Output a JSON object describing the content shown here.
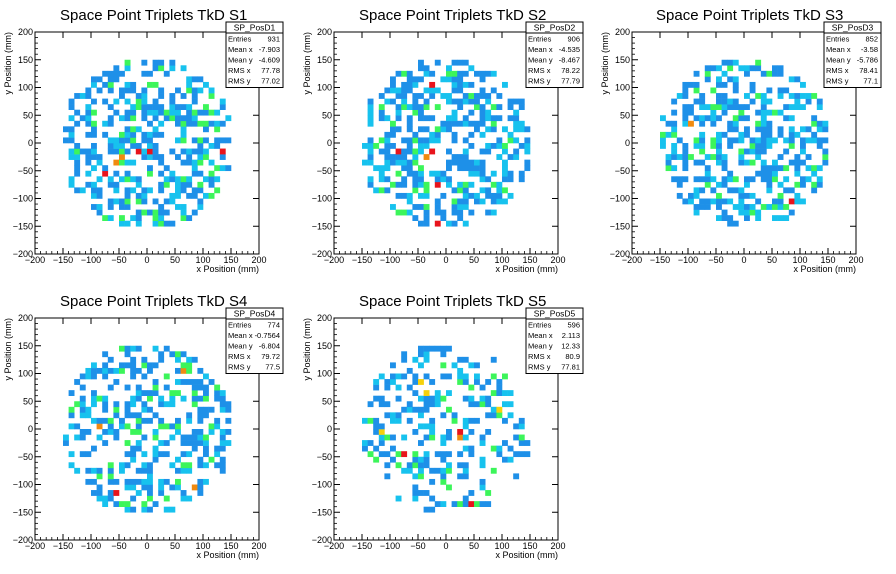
{
  "colors": {
    "low": "#1e90e8",
    "mid": "#17c2ee",
    "green": "#3cf55a",
    "yellow": "#f5d10c",
    "orange": "#f08a10",
    "red": "#e8141c"
  },
  "chart_data": [
    {
      "type": "heatmap",
      "title": "Space Point Triplets TkD S1",
      "xlabel": "x Position (mm)",
      "ylabel": "y Position (mm)",
      "xlim": [
        -200,
        200
      ],
      "ylim": [
        -200,
        200
      ],
      "xticks": [
        -200,
        -150,
        -100,
        -50,
        0,
        50,
        100,
        150,
        200
      ],
      "yticks": [
        -200,
        -150,
        -100,
        -50,
        0,
        50,
        100,
        150,
        200
      ],
      "grid": false,
      "bin_width_mm": 10,
      "radius_mm": 155,
      "stats": {
        "name": "SP_PosD1",
        "rows": [
          [
            "Entries",
            "931"
          ],
          [
            "Mean x",
            "-7.903"
          ],
          [
            "Mean y",
            "-4.609"
          ],
          [
            "RMS x",
            "77.78"
          ],
          [
            "RMS y",
            "77.02"
          ]
        ]
      },
      "hot_bins": [
        [
          -20,
          -15,
          "red"
        ],
        [
          0,
          -15,
          "red"
        ],
        [
          -80,
          -55,
          "red"
        ],
        [
          135,
          -15,
          "red"
        ],
        [
          -50,
          -30,
          "orange"
        ],
        [
          -60,
          -35,
          "orange"
        ]
      ]
    },
    {
      "type": "heatmap",
      "title": "Space Point Triplets TkD S2",
      "xlabel": "x Position (mm)",
      "ylabel": "y Position (mm)",
      "xlim": [
        -200,
        200
      ],
      "ylim": [
        -200,
        200
      ],
      "xticks": [
        -200,
        -150,
        -100,
        -50,
        0,
        50,
        100,
        150,
        200
      ],
      "yticks": [
        -200,
        -150,
        -100,
        -50,
        0,
        50,
        100,
        150,
        200
      ],
      "grid": false,
      "bin_width_mm": 10,
      "radius_mm": 155,
      "stats": {
        "name": "SP_PosD2",
        "rows": [
          [
            "Entries",
            "906"
          ],
          [
            "Mean x",
            "-4.535"
          ],
          [
            "Mean y",
            "-8.467"
          ],
          [
            "RMS x",
            "78.22"
          ],
          [
            "RMS y",
            "77.79"
          ]
        ]
      },
      "hot_bins": [
        [
          -25,
          100,
          "red"
        ],
        [
          -25,
          -15,
          "red"
        ],
        [
          -90,
          -15,
          "red"
        ],
        [
          -20,
          -80,
          "red"
        ],
        [
          -15,
          -145,
          "red"
        ],
        [
          -40,
          -25,
          "orange"
        ]
      ]
    },
    {
      "type": "heatmap",
      "title": "Space Point Triplets TkD S3",
      "xlabel": "x Position (mm)",
      "ylabel": "y Position (mm)",
      "xlim": [
        -200,
        200
      ],
      "ylim": [
        -200,
        200
      ],
      "xticks": [
        -200,
        -150,
        -100,
        -50,
        0,
        50,
        100,
        150,
        200
      ],
      "yticks": [
        -200,
        -150,
        -100,
        -50,
        0,
        50,
        100,
        150,
        200
      ],
      "grid": false,
      "bin_width_mm": 10,
      "radius_mm": 155,
      "stats": {
        "name": "SP_PosD3",
        "rows": [
          [
            "Entries",
            "852"
          ],
          [
            "Mean x",
            "-3.58"
          ],
          [
            "Mean y",
            "-5.786"
          ],
          [
            "RMS x",
            "78.41"
          ],
          [
            "RMS y",
            "77.1"
          ]
        ]
      },
      "hot_bins": [
        [
          80,
          -110,
          "red"
        ],
        [
          -95,
          35,
          "orange"
        ]
      ]
    },
    {
      "type": "heatmap",
      "title": "Space Point Triplets TkD S4",
      "xlabel": "x Position (mm)",
      "ylabel": "y Position (mm)",
      "xlim": [
        -200,
        200
      ],
      "ylim": [
        -200,
        200
      ],
      "xticks": [
        -200,
        -150,
        -100,
        -50,
        0,
        50,
        100,
        150,
        200
      ],
      "yticks": [
        -200,
        -150,
        -100,
        -50,
        0,
        50,
        100,
        150,
        200
      ],
      "grid": false,
      "bin_width_mm": 10,
      "radius_mm": 155,
      "stats": {
        "name": "SP_PosD4",
        "rows": [
          [
            "Entries",
            "774"
          ],
          [
            "Mean x",
            "-0.7564"
          ],
          [
            "Mean y",
            "-6.804"
          ],
          [
            "RMS x",
            "79.72"
          ],
          [
            "RMS y",
            "77.5"
          ]
        ]
      },
      "hot_bins": [
        [
          -55,
          -120,
          "red"
        ],
        [
          80,
          -110,
          "orange"
        ],
        [
          65,
          105,
          "orange"
        ],
        [
          -85,
          5,
          "orange"
        ]
      ]
    },
    {
      "type": "heatmap",
      "title": "Space Point Triplets TkD S5",
      "xlabel": "x Position (mm)",
      "ylabel": "y Position (mm)",
      "xlim": [
        -200,
        200
      ],
      "ylim": [
        -200,
        200
      ],
      "xticks": [
        -200,
        -150,
        -100,
        -50,
        0,
        50,
        100,
        150,
        200
      ],
      "yticks": [
        -200,
        -150,
        -100,
        -50,
        0,
        50,
        100,
        150,
        200
      ],
      "grid": false,
      "bin_width_mm": 10,
      "radius_mm": 155,
      "stats": {
        "name": "SP_PosD5",
        "rows": [
          [
            "Entries",
            "596"
          ],
          [
            "Mean x",
            "2.113"
          ],
          [
            "Mean y",
            "12.33"
          ],
          [
            "RMS x",
            "80.9"
          ],
          [
            "RMS y",
            "77.81"
          ]
        ]
      },
      "hot_bins": [
        [
          20,
          -5,
          "red"
        ],
        [
          -75,
          -50,
          "red"
        ],
        [
          40,
          -140,
          "red"
        ],
        [
          -50,
          85,
          "yellow"
        ],
        [
          -40,
          60,
          "yellow"
        ],
        [
          90,
          30,
          "yellow"
        ],
        [
          -115,
          -10,
          "yellow"
        ],
        [
          20,
          -15,
          "orange"
        ]
      ]
    }
  ]
}
